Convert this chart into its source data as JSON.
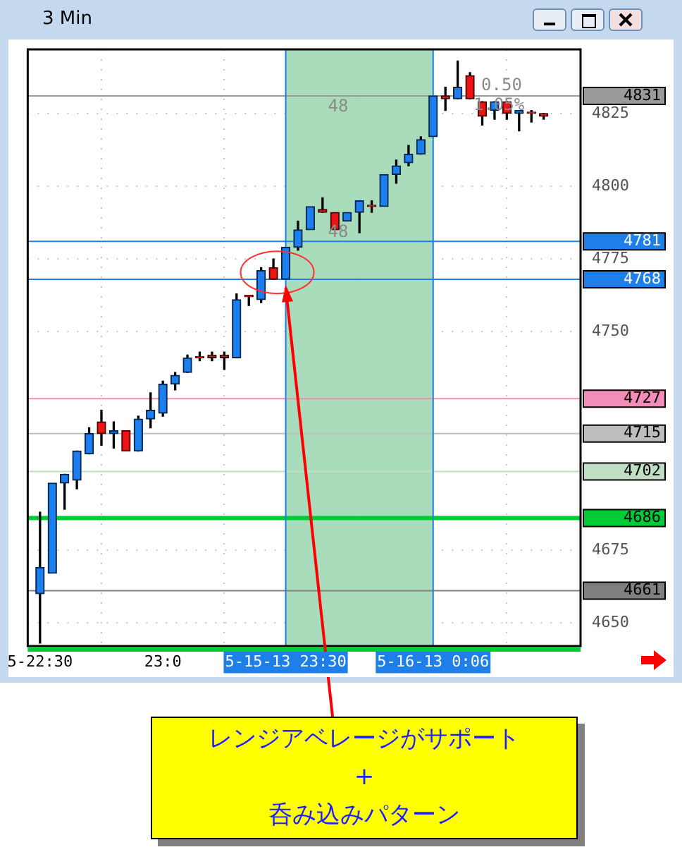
{
  "chart_data": {
    "type": "candlestick",
    "title": "3 Min",
    "x": [
      "--05-15T22:30",
      "--05-15T22:33",
      "--05-15T22:36",
      "--05-15T22:39",
      "--05-15T22:42",
      "--05-15T22:45",
      "--05-15T22:48",
      "--05-15T22:51",
      "--05-15T22:54",
      "--05-15T22:57",
      "--05-15T23:00",
      "--05-15T23:03",
      "--05-15T23:06",
      "--05-15T23:09",
      "--05-15T23:12",
      "--05-15T23:15",
      "--05-15T23:18",
      "--05-15T23:21",
      "--05-15T23:24",
      "--05-15T23:27",
      "--05-15T23:30",
      "--05-15T23:33",
      "--05-15T23:36",
      "--05-15T23:39",
      "--05-15T23:42",
      "--05-15T23:45",
      "--05-15T23:48",
      "--05-15T23:51",
      "--05-15T23:54",
      "--05-15T23:57",
      "--05-16T00:00",
      "--05-16T00:03",
      "--05-16T00:06",
      "--05-16T00:09",
      "--05-16T00:12",
      "--05-16T00:15",
      "--05-16T00:18",
      "--05-16T00:21",
      "--05-16T00:24",
      "--05-16T00:27",
      "--05-16T00:30",
      "--05-16T00:33"
    ],
    "ohlc": [
      [
        4660,
        4688,
        4643,
        4669
      ],
      [
        4667,
        4698,
        4667,
        4698
      ],
      [
        4698,
        4701,
        4689,
        4701
      ],
      [
        4699,
        4709,
        4696,
        4709
      ],
      [
        4708,
        4717,
        4708,
        4715
      ],
      [
        4719,
        4723,
        4711,
        4715
      ],
      [
        4715,
        4719,
        4710,
        4716
      ],
      [
        4716,
        4716,
        4709,
        4709
      ],
      [
        4709,
        4721,
        4709,
        4720
      ],
      [
        4720,
        4729,
        4717,
        4723
      ],
      [
        4722,
        4733,
        4721,
        4732
      ],
      [
        4732,
        4736,
        4730,
        4735
      ],
      [
        4736,
        4742,
        4736,
        4741
      ],
      [
        4741,
        4743,
        4740,
        4741
      ],
      [
        4742,
        4743,
        4740,
        4741
      ],
      [
        4742,
        4743,
        4737,
        4741
      ],
      [
        4741,
        4763,
        4741,
        4761
      ],
      [
        4762,
        4762,
        4759,
        4762
      ],
      [
        4761,
        4772,
        4760,
        4771
      ],
      [
        4772,
        4775,
        4768,
        4768
      ],
      [
        4768,
        4779,
        4768,
        4779
      ],
      [
        4779,
        4788,
        4778,
        4785
      ],
      [
        4785,
        4793,
        4785,
        4793
      ],
      [
        4792,
        4796,
        4791,
        4791
      ],
      [
        4791,
        4791,
        4785,
        4785
      ],
      [
        4788,
        4791,
        4788,
        4791
      ],
      [
        4791,
        4795,
        4784,
        4795
      ],
      [
        4793,
        4795,
        4791,
        4793
      ],
      [
        4793,
        4804,
        4793,
        4804
      ],
      [
        4804,
        4809,
        4801,
        4807
      ],
      [
        4808,
        4814,
        4807,
        4811
      ],
      [
        4811,
        4817,
        4811,
        4816
      ],
      [
        4817,
        4831,
        4817,
        4831
      ],
      [
        4831,
        4834,
        4826,
        4830
      ],
      [
        4830,
        4843,
        4830,
        4834
      ],
      [
        4838,
        4839,
        4830,
        4830
      ],
      [
        4829,
        4829,
        4821,
        4824
      ],
      [
        4826,
        4829,
        4823,
        4829
      ],
      [
        4829,
        4829,
        4823,
        4825
      ],
      [
        4825,
        4826,
        4819,
        4826
      ],
      [
        4825,
        4826,
        4822,
        4825
      ],
      [
        4825,
        4825,
        4823,
        4824
      ]
    ],
    "xlim": [
      "--05-15T22:27",
      "--05-16T00:42"
    ],
    "xticks": [
      {
        "value": "--05-15T22:30",
        "label": "5-22:30"
      },
      {
        "value": "--05-15T23:00",
        "label": "23:0"
      },
      {
        "value": "--05-15T23:30",
        "label": "5-15-13 23:30"
      },
      {
        "value": "--05-16T00:06",
        "label": "5-16-13 0:06"
      }
    ],
    "ylim": [
      4642,
      4847
    ],
    "yticks": [
      4650,
      4675,
      4750,
      4775,
      4800,
      4825
    ],
    "grid": true,
    "ref_lines": [
      {
        "axis": "y",
        "value": 4831,
        "label": "4831",
        "color": "#9a9a9a"
      },
      {
        "axis": "y",
        "value": 4781,
        "label": "4781",
        "color": "#1e7fe8"
      },
      {
        "axis": "y",
        "value": 4768,
        "label": "4768",
        "color": "#1e7fe8"
      },
      {
        "axis": "y",
        "value": 4727,
        "label": "4727",
        "color": "#f48cb8"
      },
      {
        "axis": "y",
        "value": 4715,
        "label": "4715",
        "color": "#bdbdbd"
      },
      {
        "axis": "y",
        "value": 4702,
        "label": "4702",
        "color": "#bfdfc2"
      },
      {
        "axis": "y",
        "value": 4686,
        "label": "4686",
        "color": "#00cc33"
      },
      {
        "axis": "y",
        "value": 4661,
        "label": "4661",
        "color": "#808080"
      },
      {
        "axis": "x",
        "value": "--05-15T23:30",
        "color": "#1e7fe8"
      },
      {
        "axis": "x",
        "value": "--05-16T00:06",
        "color": "#1e7fe8"
      }
    ],
    "bands": [
      {
        "axis": "x",
        "from": "--05-15T23:30",
        "to": "--05-16T00:06",
        "color": "#9fd8b4"
      }
    ],
    "annotations": [
      "48",
      "48",
      "0.50",
      "1.05%",
      {
        "text": "レンジアベレージがサポート\n+\n呑み込みパターン",
        "x": "--05-15T23:30",
        "y": 4767
      }
    ]
  }
}
